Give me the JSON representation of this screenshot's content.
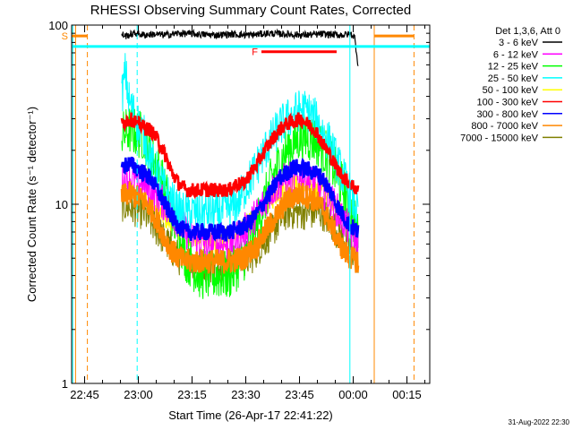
{
  "chart_data": {
    "type": "line",
    "title": "RHESSI Observing Summary Count Rates, Corrected",
    "xlabel": "Start Time (26-Apr-17 22:41:22)",
    "ylabel": "Corrected Count Rate (s⁻¹ detector⁻¹)",
    "x_unit": "minutes since 22:41:22",
    "xlim": [
      0,
      100
    ],
    "ylim": [
      1,
      100
    ],
    "y_scale": "log",
    "x_ticks": [
      {
        "label": "22:45",
        "value": 3.63
      },
      {
        "label": "23:00",
        "value": 18.63
      },
      {
        "label": "23:15",
        "value": 33.63
      },
      {
        "label": "23:30",
        "value": 48.63
      },
      {
        "label": "23:45",
        "value": 63.63
      },
      {
        "label": "00:00",
        "value": 78.63
      },
      {
        "label": "00:15",
        "value": 93.63
      }
    ],
    "y_ticks": [
      {
        "label": "1",
        "value": 1
      },
      {
        "label": "10",
        "value": 10
      },
      {
        "label": "100",
        "value": 100
      }
    ],
    "legend_title": "Det 1,3,6, Att 0",
    "legend_position": "right",
    "series": [
      {
        "name": "3 - 6 keV",
        "color": "#000000",
        "x": [
          14,
          15,
          16,
          18,
          20,
          23,
          26,
          30,
          35,
          40,
          45,
          50,
          55,
          60,
          65,
          70,
          75,
          78,
          79,
          80
        ],
        "y": [
          89,
          87,
          88,
          90,
          88,
          89,
          88,
          90,
          89,
          88,
          89,
          88,
          90,
          89,
          88,
          89,
          88,
          89,
          86,
          60
        ]
      },
      {
        "name": "6 - 12 keV",
        "color": "#ff00ff",
        "x": [
          14,
          16,
          20,
          24,
          28,
          32,
          36,
          40,
          44,
          48,
          52,
          56,
          60,
          64,
          68,
          72,
          76,
          78,
          80
        ],
        "y": [
          13,
          14,
          13,
          11,
          9,
          7,
          6,
          6,
          6,
          7,
          9,
          12,
          14,
          14,
          13,
          11,
          8,
          7,
          6
        ]
      },
      {
        "name": "12 - 25 keV",
        "color": "#00ff00",
        "x": [
          14,
          16,
          20,
          24,
          28,
          32,
          36,
          40,
          44,
          48,
          52,
          56,
          60,
          64,
          68,
          72,
          76,
          78,
          80
        ],
        "y": [
          24,
          26,
          24,
          16,
          9,
          5,
          4,
          4,
          4,
          5,
          8,
          14,
          20,
          24,
          23,
          18,
          12,
          9,
          7
        ]
      },
      {
        "name": "25 - 50 keV",
        "color": "#00ffff",
        "x": [
          14,
          15,
          16,
          18,
          20,
          22,
          26,
          30,
          34,
          38,
          42,
          46,
          50,
          54,
          58,
          62,
          64,
          66,
          68,
          72,
          76,
          78,
          80
        ],
        "y": [
          40,
          55,
          38,
          30,
          25,
          18,
          12,
          9,
          9,
          9,
          9,
          10,
          14,
          20,
          27,
          32,
          34,
          33,
          30,
          22,
          14,
          11,
          9
        ]
      },
      {
        "name": "50 - 100 keV",
        "color": "#ffff00",
        "x": [
          14,
          20,
          30,
          40,
          50,
          60,
          70,
          80
        ],
        "y": [
          12,
          11,
          7,
          6,
          8,
          13,
          12,
          7
        ]
      },
      {
        "name": "100 - 300 keV",
        "color": "#ff0000",
        "x": [
          14,
          16,
          18,
          20,
          22,
          24,
          26,
          28,
          30,
          32,
          36,
          40,
          44,
          46,
          48,
          50,
          52,
          54,
          56,
          58,
          60,
          62,
          64,
          66,
          68,
          70,
          72,
          74,
          76,
          78,
          80
        ],
        "y": [
          28,
          30,
          29,
          27,
          26,
          23,
          19,
          15,
          13,
          12,
          12,
          12,
          12,
          13,
          13,
          15,
          17,
          20,
          23,
          26,
          28,
          29,
          30,
          28,
          26,
          22,
          19,
          16,
          14,
          13,
          12
        ]
      },
      {
        "name": "300 - 800 keV",
        "color": "#0000ff",
        "x": [
          14,
          16,
          18,
          20,
          22,
          24,
          26,
          28,
          30,
          32,
          34,
          36,
          40,
          44,
          48,
          50,
          52,
          54,
          56,
          58,
          60,
          62,
          64,
          66,
          68,
          70,
          72,
          74,
          76,
          78,
          80
        ],
        "y": [
          16,
          17,
          16,
          15,
          14,
          12,
          10,
          8.5,
          7.5,
          7,
          7,
          7,
          7,
          7,
          7.5,
          8,
          9,
          10.5,
          12,
          14,
          15,
          16,
          16,
          15.5,
          15,
          14,
          12,
          10,
          8.5,
          7.5,
          7
        ]
      },
      {
        "name": "800 - 7000 keV",
        "color": "#ff8800",
        "x": [
          14,
          16,
          18,
          20,
          22,
          24,
          26,
          28,
          30,
          32,
          34,
          36,
          40,
          44,
          48,
          50,
          52,
          54,
          56,
          58,
          60,
          62,
          64,
          66,
          68,
          70,
          72,
          74,
          76,
          78,
          80
        ],
        "y": [
          11,
          11.5,
          11,
          10.5,
          9.5,
          8,
          6.5,
          5.5,
          5,
          4.8,
          4.8,
          4.8,
          4.8,
          4.8,
          5,
          5.5,
          6,
          7,
          8,
          9,
          10.5,
          11,
          11.5,
          11,
          10.5,
          9.5,
          8,
          6.5,
          5.5,
          5,
          4.8
        ]
      },
      {
        "name": "7000 - 15000 keV",
        "color": "#808000",
        "x": [
          14,
          20,
          30,
          40,
          50,
          60,
          70,
          80
        ],
        "y": [
          10,
          9,
          5,
          4.5,
          5,
          9,
          9,
          5
        ]
      }
    ],
    "vertical_lines": [
      {
        "x": 0.3,
        "color": "#00ffff",
        "style": "solid"
      },
      {
        "x": 1.1,
        "color": "#ff8800",
        "style": "solid"
      },
      {
        "x": 4.4,
        "color": "#ff8800",
        "style": "dashed"
      },
      {
        "x": 18.3,
        "color": "#00ffff",
        "style": "dashed"
      },
      {
        "x": 77.7,
        "color": "#00ffff",
        "style": "solid"
      },
      {
        "x": 84.5,
        "color": "#ff8800",
        "style": "solid"
      },
      {
        "x": 95.6,
        "color": "#ff8800",
        "style": "dashed"
      }
    ],
    "horizontal_lines": [
      {
        "y": 76,
        "color": "#00ffff",
        "xrange": [
          0,
          100
        ]
      }
    ],
    "flag_bars": [
      {
        "label": "S",
        "color": "#ff8800",
        "y": 87,
        "xrange": [
          0,
          4.5
        ]
      },
      {
        "label": "S",
        "color": "#ff8800",
        "y": 87,
        "xrange": [
          84.5,
          95.5
        ]
      },
      {
        "label": "F",
        "color": "#ff0000",
        "y": 71,
        "xrange": [
          53,
          74
        ]
      }
    ],
    "footer_date": "31-Aug-2022 22:30"
  }
}
